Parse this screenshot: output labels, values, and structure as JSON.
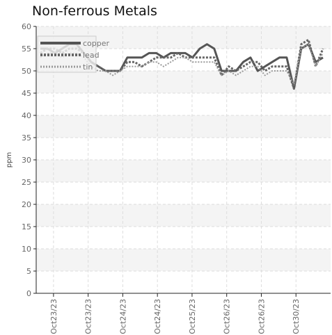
{
  "chart_data": {
    "type": "line",
    "title": "Non-ferrous Metals",
    "ylabel": "ppm",
    "xlabel": "",
    "ylim": [
      0,
      60
    ],
    "yticks": [
      0,
      5,
      10,
      15,
      20,
      25,
      30,
      35,
      40,
      45,
      50,
      55,
      60
    ],
    "xtick_labels": [
      "Oct23/23",
      "Oct23/23",
      "Oct24/23",
      "Oct24/23",
      "Oct25/23",
      "Oct26/23",
      "Oct26/23",
      "Oct30/23"
    ],
    "x": [
      0,
      1,
      2,
      3,
      4,
      5,
      6,
      7,
      8,
      9,
      10,
      11,
      12,
      13,
      14,
      15,
      16,
      17,
      18,
      19,
      20,
      21,
      22,
      23,
      24,
      25,
      26,
      27,
      28,
      29,
      30,
      31,
      32,
      33,
      34,
      35,
      36,
      37,
      38,
      39
    ],
    "series": [
      {
        "name": "copper",
        "color": "#555555",
        "values": [
          55,
          55,
          54,
          55,
          56,
          56,
          54,
          52,
          51,
          50,
          50,
          50,
          53,
          53,
          53,
          54,
          54,
          53,
          54,
          54,
          54,
          53,
          55,
          56,
          55,
          50,
          50,
          50,
          52,
          53,
          50,
          51,
          52,
          53,
          53,
          46,
          55,
          56,
          52,
          53
        ]
      },
      {
        "name": "lead",
        "color": "#666666",
        "values": [
          54,
          55,
          55,
          54,
          55,
          55,
          54,
          52,
          51,
          50,
          50,
          50,
          52,
          52,
          51,
          52,
          53,
          53,
          53,
          54,
          53,
          53,
          53,
          53,
          53,
          49,
          51,
          50,
          51,
          52,
          52,
          50,
          51,
          51,
          51,
          46,
          56,
          57,
          51,
          55
        ]
      },
      {
        "name": "tin",
        "color": "#999999",
        "values": [
          53,
          54,
          54,
          53,
          54,
          54,
          53,
          51,
          50,
          50,
          49,
          50,
          51,
          51,
          51,
          52,
          52,
          51,
          52,
          53,
          53,
          52,
          52,
          52,
          52,
          49,
          50,
          49,
          50,
          51,
          51,
          49,
          50,
          50,
          50,
          47,
          55,
          56,
          51,
          54
        ]
      }
    ],
    "grid": true,
    "legend_position": "top-left"
  }
}
